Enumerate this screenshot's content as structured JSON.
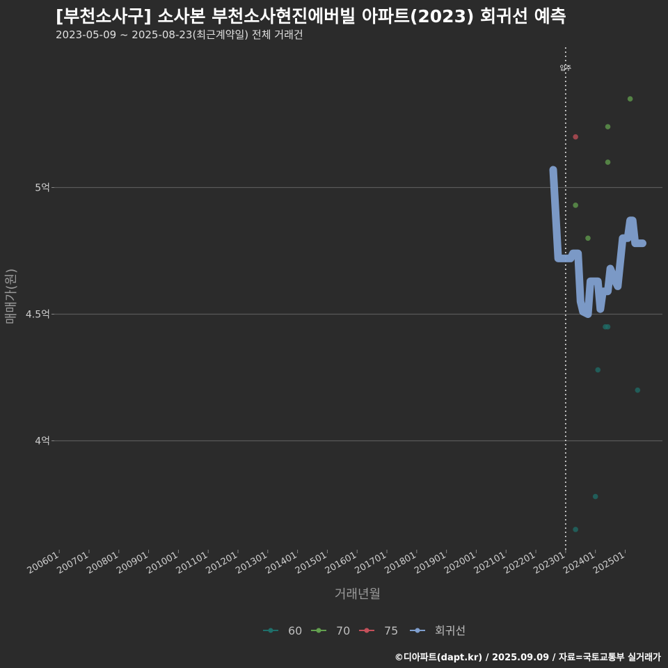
{
  "title": "[부천소사구] 소사본 부천소사현진에버빌 아파트(2023) 회귀선 예측",
  "subtitle": "2023-05-09 ~ 2025-08-23(최근계약일) 전체 거래건",
  "footer": "©디아파트(dapt.kr) / 2025.09.09 / 자료=국토교통부 실거래가",
  "colors": {
    "background": "#2b2b2b",
    "grid": "#5a5a5a",
    "s60": "#1f6f6a",
    "s70": "#63a04f",
    "s75": "#c4505a",
    "regression": "#7f9fcf"
  },
  "chart_data": {
    "type": "scatter",
    "title": "[부천소사구] 소사본 부천소사현진에버빌 아파트(2023) 회귀선 예측",
    "xlabel": "거래년월",
    "ylabel": "매매가(원)",
    "xlim": [
      "2005-11",
      "2026-04"
    ],
    "ylim": [
      3.57,
      5.57
    ],
    "y_ticks": [
      {
        "value": 4.0,
        "label": "4억"
      },
      {
        "value": 4.5,
        "label": "4.5억"
      },
      {
        "value": 5.0,
        "label": "5억"
      }
    ],
    "x_ticks": [
      "200601",
      "200701",
      "200801",
      "200901",
      "201001",
      "201101",
      "201201",
      "201301",
      "201401",
      "201501",
      "201601",
      "201701",
      "201801",
      "201901",
      "202001",
      "202101",
      "202201",
      "202301",
      "202401",
      "202501"
    ],
    "annotation": {
      "label": "입주",
      "x": "2023-01"
    },
    "legend": {
      "position": "bottom",
      "entries": [
        "60",
        "70",
        "75",
        "회귀선"
      ]
    },
    "grid": true,
    "series": [
      {
        "name": "60",
        "points": [
          {
            "x": "2023-05",
            "y": 3.65
          },
          {
            "x": "2024-01",
            "y": 3.78
          },
          {
            "x": "2024-02",
            "y": 4.28
          },
          {
            "x": "2024-05",
            "y": 4.45
          },
          {
            "x": "2024-06",
            "y": 4.45
          },
          {
            "x": "2025-06",
            "y": 4.2
          }
        ]
      },
      {
        "name": "70",
        "points": [
          {
            "x": "2023-05",
            "y": 4.93
          },
          {
            "x": "2023-10",
            "y": 4.8
          },
          {
            "x": "2024-06",
            "y": 5.1
          },
          {
            "x": "2024-06",
            "y": 5.24
          },
          {
            "x": "2025-03",
            "y": 5.35
          }
        ]
      },
      {
        "name": "75",
        "points": [
          {
            "x": "2023-05",
            "y": 5.2
          }
        ]
      },
      {
        "name": "회귀선",
        "line": [
          {
            "x": "2022-08",
            "y": 5.07
          },
          {
            "x": "2022-10",
            "y": 4.72
          },
          {
            "x": "2023-03",
            "y": 4.72
          },
          {
            "x": "2023-04",
            "y": 4.74
          },
          {
            "x": "2023-06",
            "y": 4.74
          },
          {
            "x": "2023-07",
            "y": 4.55
          },
          {
            "x": "2023-08",
            "y": 4.51
          },
          {
            "x": "2023-10",
            "y": 4.5
          },
          {
            "x": "2023-11",
            "y": 4.63
          },
          {
            "x": "2024-02",
            "y": 4.63
          },
          {
            "x": "2024-03",
            "y": 4.52
          },
          {
            "x": "2024-04",
            "y": 4.59
          },
          {
            "x": "2024-06",
            "y": 4.59
          },
          {
            "x": "2024-07",
            "y": 4.68
          },
          {
            "x": "2024-09",
            "y": 4.63
          },
          {
            "x": "2024-10",
            "y": 4.61
          },
          {
            "x": "2024-12",
            "y": 4.8
          },
          {
            "x": "2025-02",
            "y": 4.8
          },
          {
            "x": "2025-03",
            "y": 4.87
          },
          {
            "x": "2025-04",
            "y": 4.87
          },
          {
            "x": "2025-05",
            "y": 4.78
          },
          {
            "x": "2025-08",
            "y": 4.78
          }
        ]
      }
    ]
  }
}
